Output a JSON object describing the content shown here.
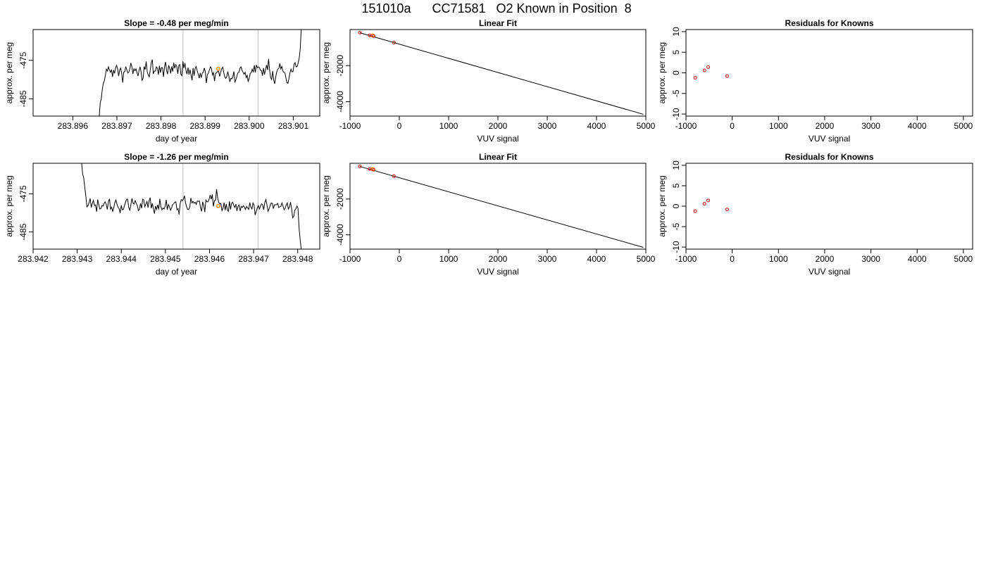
{
  "title": "151010a      CC71581   O2 Known in Position  8",
  "axis_labels": {
    "time_x": "day of year",
    "y": "approx. per meg",
    "vuv_x": "VUV signal"
  },
  "panel_titles": {
    "fit": "Linear Fit",
    "resid": "Residuals for Knowns"
  },
  "colors": {
    "line": "#000000",
    "known_point": "#cc0000",
    "highlight_point": "#ff8c00",
    "marker_line": "#bebebe"
  },
  "chart_data": [
    {
      "type": "line",
      "title": "Slope =  -0.48  per meg/min",
      "xlabel": "day of year",
      "ylabel": "approx. per meg",
      "xlim": [
        283.8951,
        283.9016
      ],
      "ylim": [
        -489.5,
        -467
      ],
      "x_ticks": [
        "283.896",
        "283.897",
        "283.898",
        "283.899",
        "283.900",
        "283.901"
      ],
      "y_ticks": [
        "-475",
        "-485"
      ],
      "markers_x": [
        283.8985,
        283.9002
      ],
      "highlight": {
        "x": 283.8993,
        "y": -477.2
      },
      "series": [
        {
          "x_start": 283.8966,
          "x_end": 283.90118,
          "values": [
            -489.5,
            -486.0,
            -485.0,
            -482.5,
            -481.0,
            -480.3,
            -478.9,
            -477.3,
            -477.8,
            -476.7,
            -477.5,
            -478.1,
            -477.4,
            -479.3,
            -477.5,
            -478.4,
            -477.0,
            -476.3,
            -477.2,
            -479.1,
            -477.6,
            -477.0,
            -478.4,
            -480.8,
            -478.1,
            -477.9,
            -476.6,
            -477.5,
            -478.3,
            -478.0,
            -477.2,
            -475.7,
            -476.7,
            -478.5,
            -477.2,
            -477.7,
            -477.2,
            -478.2,
            -479.1,
            -477.6,
            -476.7,
            -478.0,
            -480.2,
            -479.7,
            -476.6,
            -477.4,
            -475.3,
            -477.9,
            -478.8,
            -479.3,
            -477.5,
            -475.6,
            -474.8,
            -478.5,
            -477.8,
            -477.8,
            -476.7,
            -477.1,
            -478.7,
            -476.4,
            -478.2,
            -476.9,
            -476.9,
            -479.3,
            -476.7,
            -475.4,
            -477.7,
            -478.6,
            -476.3,
            -477.0,
            -478.4,
            -476.6,
            -477.9,
            -475.6,
            -477.1,
            -476.1,
            -476.6,
            -478.5,
            -476.3,
            -476.1,
            -478.6,
            -479.0,
            -475.3,
            -477.0,
            -475.7,
            -477.6,
            -478.6,
            -476.9,
            -478.7,
            -477.4,
            -478.8,
            -480.2,
            -477.0,
            -479.0,
            -477.1,
            -476.6,
            -477.7,
            -478.6,
            -479.6,
            -478.3,
            -479.5,
            -478.3,
            -478.1,
            -477.0,
            -478.0,
            -480.9,
            -478.8,
            -478.3,
            -477.5,
            -476.7,
            -477.1,
            -478.8,
            -478.2,
            -480.4,
            -478.5,
            -478.2,
            -477.9,
            -477.8,
            -479.2,
            -478.1,
            -477.2,
            -476.8,
            -478.1,
            -479.3,
            -479.7,
            -479.2,
            -477.9,
            -479.1,
            -480.6,
            -479.7,
            -479.8,
            -479.2,
            -477.9,
            -480.8,
            -480.0,
            -479.0,
            -478.2,
            -478.1,
            -477.0,
            -476.7,
            -477.6,
            -478.1,
            -478.6,
            -478.1,
            -479.5,
            -478.9,
            -480.6,
            -479.6,
            -478.4,
            -478.2,
            -477.3,
            -478.1,
            -476.3,
            -478.2,
            -476.2,
            -476.9,
            -476.7,
            -476.9,
            -477.6,
            -477.6,
            -479.0,
            -477.0,
            -478.7,
            -477.4,
            -476.2,
            -477.5,
            -474.6,
            -477.5,
            -479.5,
            -480.0,
            -477.8,
            -480.1,
            -481.1,
            -479.3,
            -478.0,
            -477.3,
            -477.1,
            -475.8,
            -477.2,
            -476.6,
            -477.8,
            -478.1,
            -478.2,
            -479.6,
            -480.8,
            -481.0,
            -479.6,
            -478.2,
            -477.3,
            -478.0,
            -477.9,
            -476.0,
            -475.6,
            -476.7,
            -476.6,
            -475.7,
            -474.5,
            -472.1,
            -467.0
          ]
        }
      ]
    },
    {
      "type": "scatter",
      "title": "Linear Fit",
      "xlabel": "VUV signal",
      "ylabel": "approx. per meg",
      "xlim": [
        -1000,
        5000
      ],
      "ylim": [
        -4800,
        0
      ],
      "x_ticks": [
        -1000,
        0,
        1000,
        2000,
        3000,
        4000,
        5000
      ],
      "y_ticks": [
        -2000,
        -4000
      ],
      "fit_line": {
        "x": [
          -800,
          4950
        ],
        "y": [
          -180,
          -4700
        ]
      },
      "points": {
        "x": [
          -800,
          -600,
          -520,
          -110
        ],
        "y": [
          -170,
          -320,
          -360,
          -720
        ]
      },
      "highlight": {
        "x": -540,
        "y": -330
      }
    },
    {
      "type": "scatter",
      "title": "Residuals for Knowns",
      "xlabel": "VUV signal",
      "ylabel": "approx. per meg",
      "xlim": [
        -1000,
        5200
      ],
      "ylim": [
        -10.5,
        10.5
      ],
      "x_ticks": [
        -1000,
        0,
        1000,
        2000,
        3000,
        4000,
        5000
      ],
      "y_ticks": [
        10,
        5,
        0,
        -5,
        -10
      ],
      "points": {
        "x": [
          -800,
          -600,
          -520,
          -110
        ],
        "y": [
          -1.2,
          0.6,
          1.4,
          -0.8
        ]
      }
    },
    {
      "type": "line",
      "title": "Slope =  -1.26  per meg/min",
      "xlabel": "day of year",
      "ylabel": "approx. per meg",
      "xlim": [
        283.942,
        283.9485
      ],
      "ylim": [
        -489.5,
        -467
      ],
      "x_ticks": [
        "283.942",
        "283.943",
        "283.944",
        "283.945",
        "283.946",
        "283.947",
        "283.948"
      ],
      "y_ticks": [
        "-475",
        "-485"
      ],
      "markers_x": [
        283.9454,
        283.9471
      ],
      "highlight": {
        "x": 283.9462,
        "y": -478.2
      },
      "series": [
        {
          "x_start": 283.9431,
          "x_end": 283.94808,
          "values": [
            -467.0,
            -469.9,
            -470.9,
            -473.4,
            -475.8,
            -478.4,
            -478.1,
            -477.3,
            -476.2,
            -478.6,
            -477.5,
            -476.7,
            -478.1,
            -477.9,
            -479.7,
            -476.5,
            -477.8,
            -479.0,
            -478.9,
            -478.1,
            -478.2,
            -477.5,
            -477.1,
            -477.8,
            -479.1,
            -477.1,
            -476.3,
            -479.0,
            -478.5,
            -479.6,
            -478.6,
            -477.4,
            -476.6,
            -477.7,
            -478.5,
            -478.9,
            -480.0,
            -478.0,
            -479.2,
            -479.1,
            -478.1,
            -477.2,
            -476.4,
            -476.4,
            -478.6,
            -479.3,
            -477.8,
            -476.2,
            -477.4,
            -477.7,
            -476.8,
            -477.5,
            -478.1,
            -479.4,
            -479.1,
            -477.5,
            -478.8,
            -476.4,
            -476.6,
            -478.4,
            -477.7,
            -477.0,
            -478.6,
            -476.8,
            -476.0,
            -478.8,
            -477.5,
            -478.9,
            -480.2,
            -478.2,
            -479.1,
            -477.9,
            -479.1,
            -476.3,
            -478.4,
            -479.2,
            -478.7,
            -479.0,
            -478.2,
            -476.6,
            -479.2,
            -477.8,
            -478.4,
            -479.3,
            -478.7,
            -477.8,
            -477.6,
            -477.2,
            -477.1,
            -479.2,
            -478.9,
            -480.4,
            -477.6,
            -476.5,
            -476.8,
            -476.4,
            -475.5,
            -477.3,
            -478.4,
            -479.1,
            -479.1,
            -478.4,
            -476.1,
            -477.4,
            -477.0,
            -477.5,
            -477.2,
            -477.8,
            -476.9,
            -477.0,
            -476.9,
            -478.6,
            -479.6,
            -477.1,
            -478.0,
            -479.8,
            -476.6,
            -477.1,
            -477.1,
            -476.4,
            -475.3,
            -476.4,
            -475.2,
            -478.3,
            -476.8,
            -476.7,
            -473.8,
            -476.1,
            -477.3,
            -477.6,
            -477.5,
            -479.4,
            -478.8,
            -477.3,
            -479.3,
            -477.7,
            -479.2,
            -479.6,
            -477.0,
            -479.1,
            -477.5,
            -477.2,
            -478.0,
            -478.6,
            -477.7,
            -479.5,
            -478.3,
            -477.9,
            -479.5,
            -478.3,
            -478.6,
            -478.1,
            -478.5,
            -479.1,
            -478.3,
            -478.7,
            -479.1,
            -477.3,
            -478.5,
            -479.0,
            -477.4,
            -478.0,
            -480.6,
            -479.6,
            -478.7,
            -478.1,
            -479.0,
            -478.2,
            -477.6,
            -477.9,
            -479.2,
            -477.3,
            -476.5,
            -477.9,
            -479.6,
            -478.9,
            -478.1,
            -477.4,
            -477.5,
            -478.9,
            -477.9,
            -477.9,
            -477.8,
            -477.5,
            -478.6,
            -478.4,
            -478.3,
            -477.4,
            -478.2,
            -479.2,
            -478.8,
            -477.9,
            -477.4,
            -479.0,
            -478.5,
            -477.2,
            -478.8,
            -481.3,
            -480.9,
            -479.3,
            -478.9,
            -478.2,
            -478.8,
            -484.0,
            -487.0,
            -489.5
          ]
        }
      ]
    },
    {
      "type": "scatter",
      "title": "Linear Fit",
      "xlabel": "VUV signal",
      "ylabel": "approx. per meg",
      "xlim": [
        -1000,
        5000
      ],
      "ylim": [
        -4800,
        0
      ],
      "x_ticks": [
        -1000,
        0,
        1000,
        2000,
        3000,
        4000,
        5000
      ],
      "y_ticks": [
        -2000,
        -4000
      ],
      "fit_line": {
        "x": [
          -800,
          4950
        ],
        "y": [
          -180,
          -4700
        ]
      },
      "points": {
        "x": [
          -800,
          -600,
          -520,
          -110
        ],
        "y": [
          -170,
          -320,
          -360,
          -720
        ]
      },
      "highlight": {
        "x": -540,
        "y": -330
      }
    },
    {
      "type": "scatter",
      "title": "Residuals for Knowns",
      "xlabel": "VUV signal",
      "ylabel": "approx. per meg",
      "xlim": [
        -1000,
        5200
      ],
      "ylim": [
        -10.5,
        10.5
      ],
      "x_ticks": [
        -1000,
        0,
        1000,
        2000,
        3000,
        4000,
        5000
      ],
      "y_ticks": [
        10,
        5,
        0,
        -5,
        -10
      ],
      "points": {
        "x": [
          -800,
          -600,
          -520,
          -110
        ],
        "y": [
          -1.2,
          0.6,
          1.4,
          -0.8
        ]
      }
    }
  ]
}
